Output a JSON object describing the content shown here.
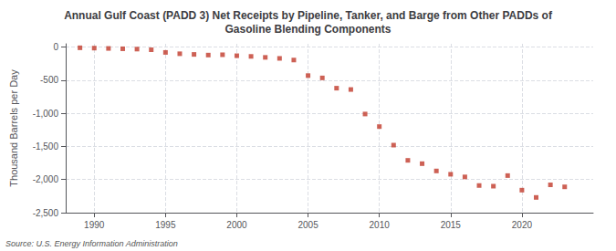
{
  "chart_data": {
    "type": "scatter",
    "title": "Annual Gulf Coast (PADD 3) Net Receipts by Pipeline, Tanker, and Barge from Other PADDs of\nGasoline Blending Components",
    "ylabel": "Thousand Barrels per Day",
    "annotations": [
      "Source: U.S. Energy Information Administration"
    ],
    "x": [
      1989,
      1990,
      1991,
      1992,
      1993,
      1994,
      1995,
      1996,
      1997,
      1998,
      1999,
      2000,
      2001,
      2002,
      2003,
      2004,
      2005,
      2006,
      2007,
      2008,
      2009,
      2010,
      2011,
      2012,
      2013,
      2014,
      2015,
      2016,
      2017,
      2018,
      2019,
      2020,
      2021,
      2022,
      2023
    ],
    "values": [
      -10,
      -15,
      -20,
      -25,
      -30,
      -40,
      -80,
      -100,
      -110,
      -120,
      -115,
      -130,
      -140,
      -155,
      -170,
      -195,
      -430,
      -465,
      -620,
      -640,
      -1010,
      -1200,
      -1480,
      -1710,
      -1760,
      -1870,
      -1920,
      -1960,
      -2090,
      -2100,
      -1940,
      -2160,
      -2270,
      -2080,
      -2110
    ],
    "color": "#c0392b",
    "marker": "square",
    "xlim": [
      1988,
      2025
    ],
    "xticks": [
      1990,
      1995,
      2000,
      2005,
      2010,
      2015,
      2020
    ],
    "ylim": [
      -2500,
      50
    ],
    "yticks": [
      0,
      -500,
      {
        "value": -1000,
        "label": "-1,000"
      },
      {
        "value": -1500,
        "label": "-1,500"
      },
      {
        "value": -2000,
        "label": "-2,000"
      },
      {
        "value": -2500,
        "label": "-2,500"
      }
    ],
    "grid": true
  }
}
